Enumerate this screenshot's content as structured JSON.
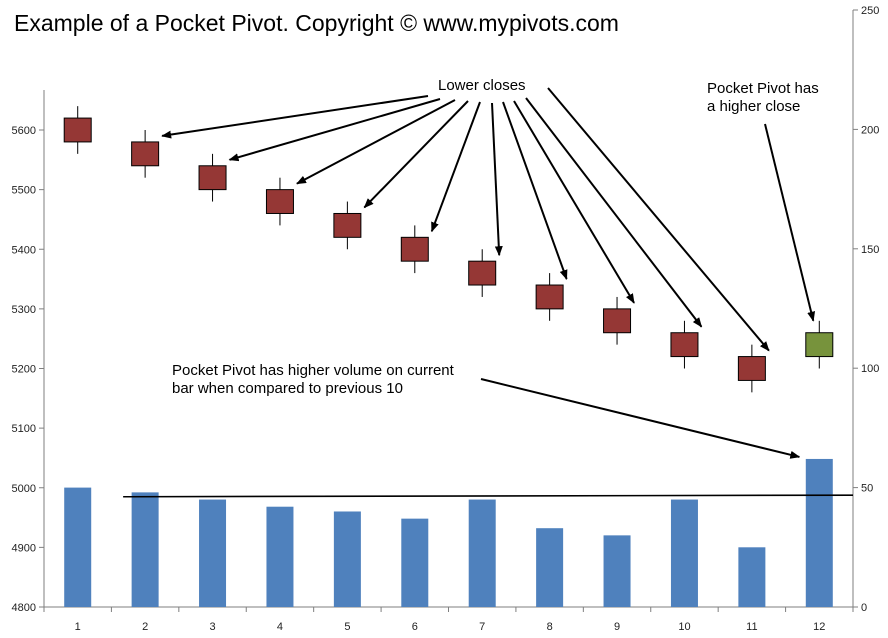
{
  "chart_data": {
    "type": "candlestick-with-volume",
    "title": "Example of a Pocket Pivot. Copyright © www.mypivots.com",
    "categories": [
      "1",
      "2",
      "3",
      "4",
      "5",
      "6",
      "7",
      "8",
      "9",
      "10",
      "11",
      "12"
    ],
    "price_axis": {
      "min": 4800,
      "max": 5600,
      "ticks": [
        "4800",
        "4900",
        "5000",
        "5100",
        "5200",
        "5300",
        "5400",
        "5500",
        "5600"
      ]
    },
    "volume_axis": {
      "min": 0,
      "max": 250,
      "ticks": [
        "0",
        "50",
        "100",
        "150",
        "200",
        "250"
      ]
    },
    "candles": [
      {
        "open": 5620,
        "close": 5580,
        "high": 5640,
        "low": 5560,
        "direction": "down"
      },
      {
        "open": 5580,
        "close": 5540,
        "high": 5600,
        "low": 5520,
        "direction": "down"
      },
      {
        "open": 5540,
        "close": 5500,
        "high": 5560,
        "low": 5480,
        "direction": "down"
      },
      {
        "open": 5500,
        "close": 5460,
        "high": 5520,
        "low": 5440,
        "direction": "down"
      },
      {
        "open": 5460,
        "close": 5420,
        "high": 5480,
        "low": 5400,
        "direction": "down"
      },
      {
        "open": 5420,
        "close": 5380,
        "high": 5440,
        "low": 5360,
        "direction": "down"
      },
      {
        "open": 5380,
        "close": 5340,
        "high": 5400,
        "low": 5320,
        "direction": "down"
      },
      {
        "open": 5340,
        "close": 5300,
        "high": 5360,
        "low": 5280,
        "direction": "down"
      },
      {
        "open": 5300,
        "close": 5260,
        "high": 5320,
        "low": 5240,
        "direction": "down"
      },
      {
        "open": 5260,
        "close": 5220,
        "high": 5280,
        "low": 5200,
        "direction": "down"
      },
      {
        "open": 5220,
        "close": 5180,
        "high": 5240,
        "low": 5160,
        "direction": "down"
      },
      {
        "open": 5220,
        "close": 5260,
        "high": 5280,
        "low": 5200,
        "direction": "up"
      }
    ],
    "volume": [
      50,
      48,
      45,
      42,
      40,
      37,
      45,
      33,
      30,
      45,
      25,
      62
    ],
    "volume_reference_line": 46.5,
    "colors": {
      "down": "#953735",
      "up": "#77933c",
      "volume": "#4f81bd",
      "axis": "#7f7f7f"
    },
    "annotations": [
      {
        "lines": [
          "Lower closes"
        ]
      },
      {
        "lines": [
          "Pocket Pivot has",
          "a higher close"
        ]
      },
      {
        "lines": [
          "Pocket Pivot has higher volume on current",
          "bar when compared to previous 10"
        ]
      }
    ]
  }
}
